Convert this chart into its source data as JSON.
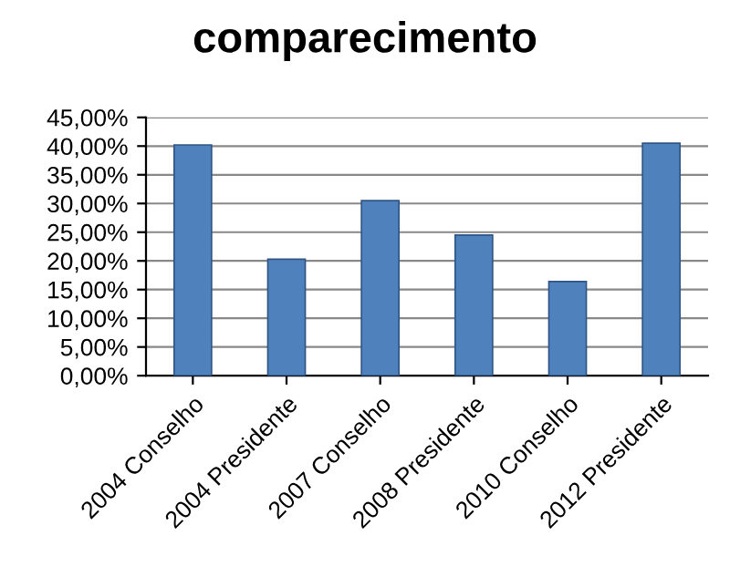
{
  "chart_data": {
    "type": "bar",
    "title": "comparecimento",
    "categories": [
      "2004 Conselho",
      "2004 Presidente",
      "2007 Conselho",
      "2008 Presidente",
      "2010 Conselho",
      "2012 Presidente"
    ],
    "values": [
      40.2,
      20.3,
      30.5,
      24.5,
      16.4,
      40.5
    ],
    "color": "#4f81bd",
    "ylim": [
      0,
      45
    ],
    "yticks": [
      {
        "value": 0,
        "label": "0,00%"
      },
      {
        "value": 5,
        "label": "5,00%"
      },
      {
        "value": 10,
        "label": "10,00%"
      },
      {
        "value": 15,
        "label": "15,00%"
      },
      {
        "value": 20,
        "label": "20,00%"
      },
      {
        "value": 25,
        "label": "25,00%"
      },
      {
        "value": 30,
        "label": "30,00%"
      },
      {
        "value": 35,
        "label": "35,00%"
      },
      {
        "value": 40,
        "label": "40,00%"
      },
      {
        "value": 45,
        "label": "45,00%"
      }
    ],
    "grid": "y"
  }
}
